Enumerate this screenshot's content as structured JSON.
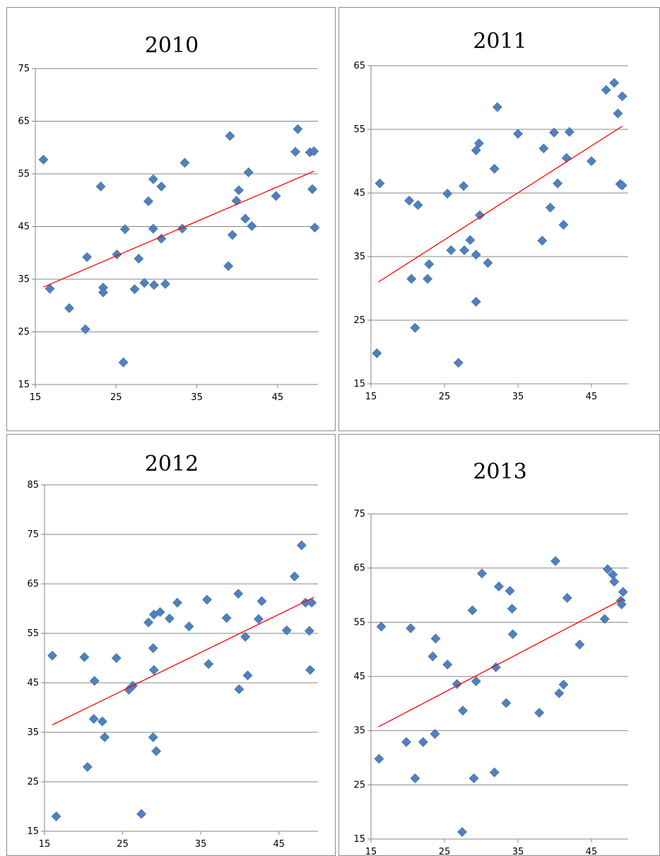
{
  "chart_data": [
    {
      "type": "scatter",
      "title": "2010",
      "xlim": [
        15,
        50
      ],
      "ylim": [
        15,
        75
      ],
      "xticks": [
        "15",
        "25",
        "35",
        "45"
      ],
      "yticks": [
        "15",
        "25",
        "35",
        "45",
        "55",
        "65",
        "75"
      ],
      "grid": true,
      "marker_color": "#4f81bd",
      "trend_color": "#ff0000",
      "trendline": [
        [
          16,
          33.5
        ],
        [
          49.5,
          55.5
        ]
      ],
      "points": [
        [
          16,
          57.7
        ],
        [
          16.8,
          33.2
        ],
        [
          19.2,
          29.5
        ],
        [
          21.2,
          25.5
        ],
        [
          21.4,
          39.2
        ],
        [
          23.1,
          52.6
        ],
        [
          23.4,
          33.4
        ],
        [
          23.4,
          32.5
        ],
        [
          25.1,
          39.7
        ],
        [
          26.1,
          44.5
        ],
        [
          25.9,
          19.2
        ],
        [
          27.3,
          33.1
        ],
        [
          27.8,
          38.9
        ],
        [
          28.5,
          34.3
        ],
        [
          29,
          49.8
        ],
        [
          29.6,
          54
        ],
        [
          29.6,
          44.6
        ],
        [
          29.7,
          33.9
        ],
        [
          30.6,
          52.6
        ],
        [
          30.6,
          42.7
        ],
        [
          31.1,
          34.1
        ],
        [
          33.2,
          44.6
        ],
        [
          33.5,
          57.1
        ],
        [
          38.9,
          37.5
        ],
        [
          39.1,
          62.2
        ],
        [
          39.4,
          43.4
        ],
        [
          39.9,
          49.9
        ],
        [
          40.2,
          51.9
        ],
        [
          41,
          46.5
        ],
        [
          41.4,
          55.3
        ],
        [
          41.8,
          45.1
        ],
        [
          44.8,
          50.8
        ],
        [
          47.2,
          59.2
        ],
        [
          47.5,
          63.5
        ],
        [
          49,
          59.1
        ],
        [
          49.3,
          52.1
        ],
        [
          49.5,
          59.3
        ],
        [
          49.6,
          44.8
        ]
      ]
    },
    {
      "type": "scatter",
      "title": "2011",
      "xlim": [
        15,
        50
      ],
      "ylim": [
        15,
        65
      ],
      "xticks": [
        "15",
        "25",
        "35",
        "45"
      ],
      "yticks": [
        "15",
        "25",
        "35",
        "45",
        "55",
        "65"
      ],
      "grid": true,
      "marker_color": "#4f81bd",
      "trend_color": "#ff0000",
      "trendline": [
        [
          16,
          31
        ],
        [
          49.2,
          55.5
        ]
      ],
      "points": [
        [
          15.8,
          19.8
        ],
        [
          16.2,
          46.5
        ],
        [
          20.2,
          43.8
        ],
        [
          20.5,
          31.5
        ],
        [
          21,
          23.8
        ],
        [
          21.4,
          43.1
        ],
        [
          22.7,
          31.5
        ],
        [
          22.9,
          33.8
        ],
        [
          25.4,
          44.9
        ],
        [
          25.9,
          36
        ],
        [
          26.9,
          18.3
        ],
        [
          27.6,
          46.1
        ],
        [
          27.7,
          36
        ],
        [
          28.5,
          37.6
        ],
        [
          29.3,
          35.3
        ],
        [
          29.3,
          27.9
        ],
        [
          29.3,
          51.7
        ],
        [
          29.7,
          52.8
        ],
        [
          29.8,
          41.5
        ],
        [
          30.9,
          34
        ],
        [
          31.8,
          48.8
        ],
        [
          32.2,
          58.5
        ],
        [
          35,
          54.3
        ],
        [
          38.3,
          37.5
        ],
        [
          38.5,
          52
        ],
        [
          39.4,
          42.7
        ],
        [
          39.9,
          54.5
        ],
        [
          40.4,
          46.5
        ],
        [
          41.2,
          40
        ],
        [
          41.6,
          50.5
        ],
        [
          42,
          54.6
        ],
        [
          45,
          50
        ],
        [
          47,
          61.2
        ],
        [
          48.1,
          62.3
        ],
        [
          48.6,
          57.5
        ],
        [
          48.9,
          46.4
        ],
        [
          49.2,
          46.2
        ],
        [
          49.2,
          60.2
        ]
      ]
    },
    {
      "type": "scatter",
      "title": "2012",
      "xlim": [
        15,
        50
      ],
      "ylim": [
        15,
        85
      ],
      "xticks": [
        "15",
        "25",
        "35",
        "45"
      ],
      "yticks": [
        "15",
        "25",
        "35",
        "45",
        "55",
        "65",
        "75",
        "85"
      ],
      "grid": true,
      "marker_color": "#4f81bd",
      "trend_color": "#ff0000",
      "trendline": [
        [
          16,
          36.5
        ],
        [
          49.5,
          62.3
        ]
      ],
      "points": [
        [
          16,
          50.5
        ],
        [
          16.5,
          18
        ],
        [
          20.1,
          50.2
        ],
        [
          20.5,
          28
        ],
        [
          21.3,
          37.7
        ],
        [
          21.4,
          45.4
        ],
        [
          22.4,
          37.2
        ],
        [
          22.7,
          34
        ],
        [
          24.2,
          50
        ],
        [
          25.8,
          43.6
        ],
        [
          26.3,
          44.4
        ],
        [
          27.4,
          18.5
        ],
        [
          28.3,
          57.2
        ],
        [
          28.9,
          52
        ],
        [
          28.9,
          34
        ],
        [
          29,
          47.6
        ],
        [
          29,
          58.8
        ],
        [
          29.3,
          31.2
        ],
        [
          29.8,
          59.3
        ],
        [
          31,
          58
        ],
        [
          32,
          61.2
        ],
        [
          33.5,
          56.4
        ],
        [
          35.8,
          61.8
        ],
        [
          36,
          48.8
        ],
        [
          38.3,
          58.1
        ],
        [
          39.8,
          63
        ],
        [
          39.9,
          43.7
        ],
        [
          40.7,
          54.3
        ],
        [
          41,
          46.5
        ],
        [
          42.4,
          57.9
        ],
        [
          42.8,
          61.5
        ],
        [
          46,
          55.6
        ],
        [
          47,
          66.5
        ],
        [
          47.9,
          72.8
        ],
        [
          48.4,
          61.2
        ],
        [
          48.9,
          55.5
        ],
        [
          49,
          47.6
        ],
        [
          49.2,
          61.2
        ]
      ]
    },
    {
      "type": "scatter",
      "title": "2013",
      "xlim": [
        15,
        50
      ],
      "ylim": [
        15,
        75
      ],
      "xticks": [
        "15",
        "25",
        "35",
        "45"
      ],
      "yticks": [
        "15",
        "25",
        "35",
        "45",
        "55",
        "65",
        "75"
      ],
      "grid": true,
      "marker_color": "#4f81bd",
      "trend_color": "#ff0000",
      "trendline": [
        [
          16,
          35.7
        ],
        [
          49.3,
          59.3
        ]
      ],
      "points": [
        [
          16.1,
          29.8
        ],
        [
          16.4,
          54.2
        ],
        [
          19.8,
          32.9
        ],
        [
          20.4,
          53.9
        ],
        [
          21,
          26.2
        ],
        [
          22.1,
          32.9
        ],
        [
          23.4,
          48.7
        ],
        [
          23.7,
          34.4
        ],
        [
          23.8,
          52
        ],
        [
          25.4,
          47.2
        ],
        [
          26.7,
          43.6
        ],
        [
          27.4,
          16.3
        ],
        [
          27.5,
          38.7
        ],
        [
          28.8,
          57.2
        ],
        [
          29,
          26.2
        ],
        [
          29.3,
          44.1
        ],
        [
          30.1,
          64
        ],
        [
          31.8,
          27.3
        ],
        [
          32,
          46.7
        ],
        [
          32.4,
          61.6
        ],
        [
          33.4,
          40.1
        ],
        [
          33.9,
          60.8
        ],
        [
          34.2,
          57.5
        ],
        [
          34.3,
          52.8
        ],
        [
          37.9,
          38.3
        ],
        [
          40.1,
          66.3
        ],
        [
          40.6,
          41.9
        ],
        [
          41.2,
          43.5
        ],
        [
          41.7,
          59.5
        ],
        [
          43.4,
          50.9
        ],
        [
          46.8,
          55.6
        ],
        [
          47.2,
          64.8
        ],
        [
          47.9,
          63.8
        ],
        [
          48.1,
          62.5
        ],
        [
          49,
          59
        ],
        [
          49.1,
          58.3
        ],
        [
          49.3,
          60.6
        ]
      ]
    }
  ]
}
